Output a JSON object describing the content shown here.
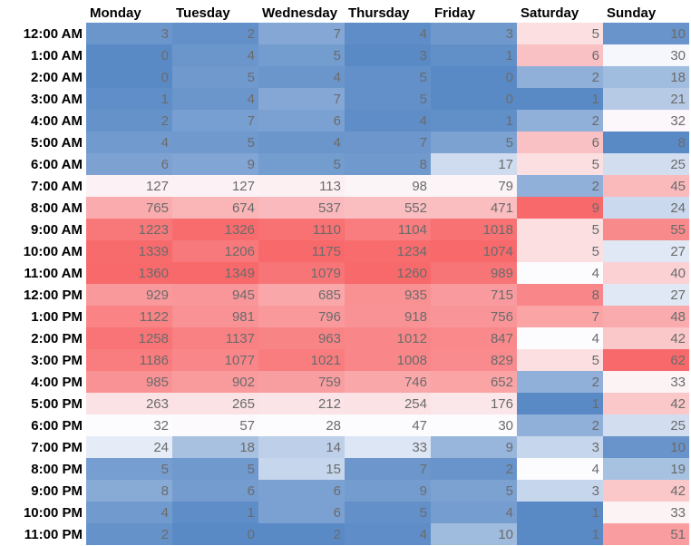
{
  "chart_data": {
    "type": "heatmap",
    "columns": [
      "Monday",
      "Tuesday",
      "Wednesday",
      "Thursday",
      "Friday",
      "Saturday",
      "Sunday"
    ],
    "rows": [
      "12:00 AM",
      "1:00 AM",
      "2:00 AM",
      "3:00 AM",
      "4:00 AM",
      "5:00 AM",
      "6:00 AM",
      "7:00 AM",
      "8:00 AM",
      "9:00 AM",
      "10:00 AM",
      "11:00 AM",
      "12:00 PM",
      "1:00 PM",
      "2:00 PM",
      "3:00 PM",
      "4:00 PM",
      "5:00 PM",
      "6:00 PM",
      "7:00 PM",
      "8:00 PM",
      "9:00 PM",
      "10:00 PM",
      "11:00 PM"
    ],
    "values": [
      [
        3,
        2,
        7,
        4,
        3,
        5,
        10
      ],
      [
        0,
        4,
        5,
        3,
        1,
        6,
        30
      ],
      [
        0,
        5,
        4,
        5,
        0,
        2,
        18
      ],
      [
        1,
        4,
        7,
        5,
        0,
        1,
        21
      ],
      [
        2,
        7,
        6,
        4,
        1,
        2,
        32
      ],
      [
        4,
        5,
        4,
        7,
        5,
        6,
        8
      ],
      [
        6,
        9,
        5,
        8,
        17,
        5,
        25
      ],
      [
        127,
        127,
        113,
        98,
        79,
        2,
        45
      ],
      [
        765,
        674,
        537,
        552,
        471,
        9,
        24
      ],
      [
        1223,
        1326,
        1110,
        1104,
        1018,
        5,
        55
      ],
      [
        1339,
        1206,
        1175,
        1234,
        1074,
        5,
        27
      ],
      [
        1360,
        1349,
        1079,
        1260,
        989,
        4,
        40
      ],
      [
        929,
        945,
        685,
        935,
        715,
        8,
        27
      ],
      [
        1122,
        981,
        796,
        918,
        756,
        7,
        48
      ],
      [
        1258,
        1137,
        963,
        1012,
        847,
        4,
        42
      ],
      [
        1186,
        1077,
        1021,
        1008,
        829,
        5,
        62
      ],
      [
        985,
        902,
        759,
        746,
        652,
        2,
        33
      ],
      [
        263,
        265,
        212,
        254,
        176,
        1,
        42
      ],
      [
        32,
        57,
        28,
        47,
        30,
        2,
        25
      ],
      [
        24,
        18,
        14,
        33,
        9,
        3,
        10
      ],
      [
        5,
        5,
        15,
        7,
        2,
        4,
        19
      ],
      [
        8,
        6,
        6,
        9,
        5,
        3,
        42
      ],
      [
        4,
        1,
        6,
        5,
        4,
        1,
        33
      ],
      [
        2,
        0,
        2,
        4,
        10,
        1,
        51
      ]
    ],
    "color_scale": {
      "low": "#5a8ac6",
      "mid": "#fcfcff",
      "high": "#f8696b",
      "scale_scope": "per-column"
    },
    "grid": false,
    "legend": "none"
  }
}
